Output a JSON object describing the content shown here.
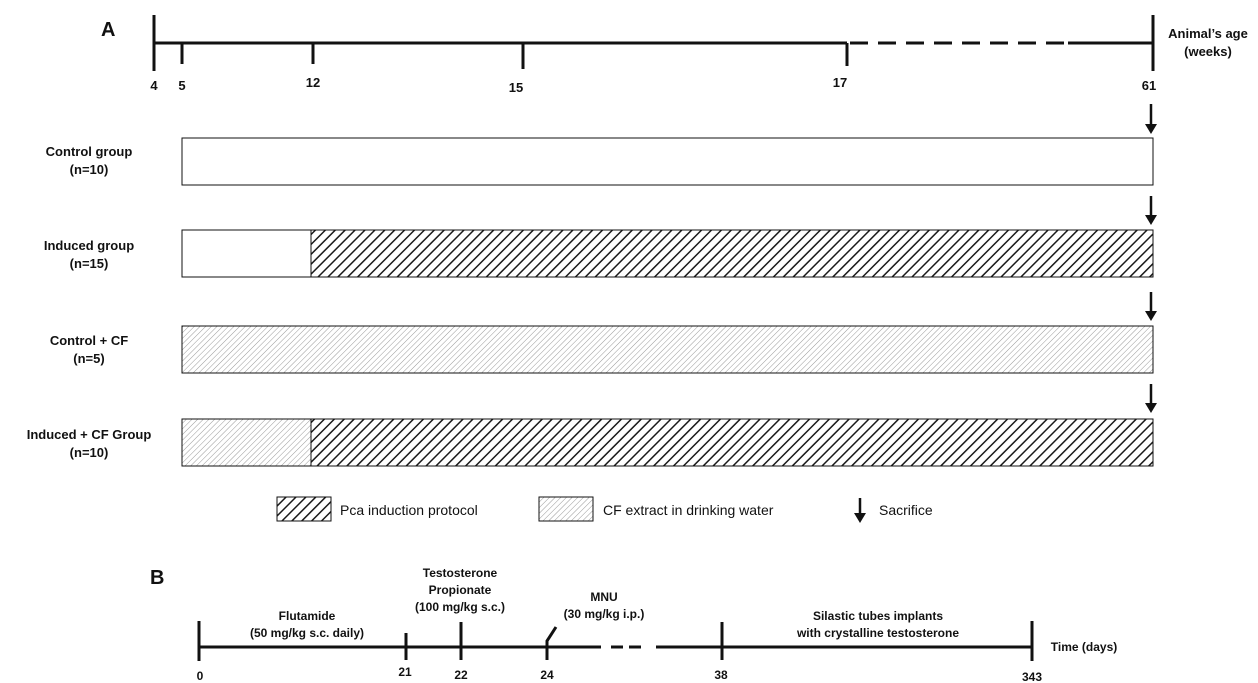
{
  "panel_a": {
    "label": "A",
    "axis_title_line1": "Animal’s age",
    "axis_title_line2": "(weeks)",
    "ticks": [
      "4",
      "5",
      "12",
      "15",
      "17",
      "61"
    ],
    "groups": [
      {
        "name": "Control group",
        "n": "(n=10)"
      },
      {
        "name": "Induced group",
        "n": "(n=15)"
      },
      {
        "name": "Control + CF",
        "n": "(n=5)"
      },
      {
        "name": "Induced + CF Group",
        "n": "(n=10)"
      }
    ],
    "legend": {
      "pca": "Pca induction protocol",
      "cf": "CF extract in drinking water",
      "sacrifice": "Sacrifice"
    }
  },
  "panel_b": {
    "label": "B",
    "axis_title": "Time (days)",
    "ticks": [
      "0",
      "21",
      "22",
      "24",
      "38",
      "343"
    ],
    "events": {
      "flutamide_1": "Flutamide",
      "flutamide_2": "(50 mg/kg s.c. daily)",
      "testosterone_1": "Testosterone",
      "testosterone_2": "Propionate",
      "testosterone_3": "(100 mg/kg s.c.)",
      "mnu_1": "MNU",
      "mnu_2": "(30 mg/kg i.p.)",
      "silastic_1": "Silastic tubes implants",
      "silastic_2": "with crystalline testosterone"
    }
  },
  "colors": {
    "line": "#111111",
    "hatch_dense": "#1a1a1a",
    "hatch_light": "#9a9a9a"
  }
}
